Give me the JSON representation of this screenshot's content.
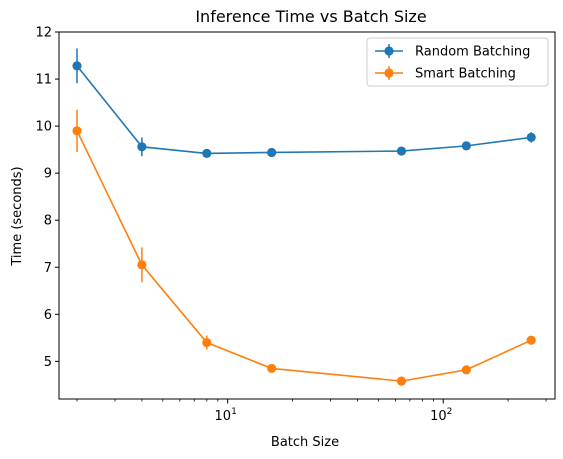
{
  "chart_data": {
    "type": "line",
    "title": "Inference Time vs Batch Size",
    "xlabel": "Batch Size",
    "ylabel": "Time (seconds)",
    "xscale": "log",
    "xlim": [
      1.65,
      330
    ],
    "ylim": [
      4.2,
      12.0
    ],
    "yticks": [
      5,
      6,
      7,
      8,
      9,
      10,
      11,
      12
    ],
    "xticks_major": [
      {
        "value": 10,
        "base": "10",
        "exp": "1"
      },
      {
        "value": 100,
        "base": "10",
        "exp": "2"
      }
    ],
    "grid": false,
    "legend": "top-right",
    "x": [
      2,
      4,
      8,
      16,
      64,
      128,
      256
    ],
    "series": [
      {
        "name": "Random Batching",
        "color": "#1f77b4",
        "values": [
          11.28,
          9.56,
          9.42,
          9.44,
          9.47,
          9.58,
          9.76
        ],
        "errors": [
          0.37,
          0.2,
          0.06,
          0.07,
          0.06,
          0.07,
          0.11
        ]
      },
      {
        "name": "Smart Batching",
        "color": "#ff7f0e",
        "values": [
          9.9,
          7.05,
          5.4,
          4.85,
          4.58,
          4.82,
          5.45
        ],
        "errors": [
          0.45,
          0.37,
          0.15,
          0.06,
          0.06,
          0.06,
          0.07
        ]
      }
    ]
  }
}
